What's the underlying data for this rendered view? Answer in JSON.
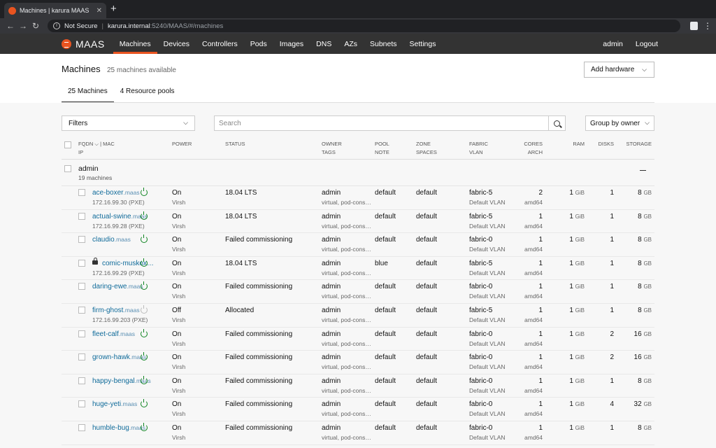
{
  "browser": {
    "tab_title": "Machines | karura MAAS",
    "security_label": "Not Secure",
    "url_host": "karura.internal",
    "url_path": ":5240/MAAS/#/machines"
  },
  "nav": {
    "logo": "MAAS",
    "items": [
      "Machines",
      "Devices",
      "Controllers",
      "Pods",
      "Images",
      "DNS",
      "AZs",
      "Subnets",
      "Settings"
    ],
    "active": "Machines",
    "user": "admin",
    "logout": "Logout"
  },
  "header": {
    "title": "Machines",
    "count": "25 machines available",
    "add_hardware": "Add hardware",
    "tabs": [
      "25 Machines",
      "4 Resource pools"
    ]
  },
  "controls": {
    "filters": "Filters",
    "search_placeholder": "Search",
    "group_by": "Group by owner"
  },
  "columns": {
    "fqdn": "FQDN",
    "mac": "| MAC",
    "ip": "IP",
    "power": "Power",
    "status": "Status",
    "owner": "Owner",
    "tags": "Tags",
    "pool": "Pool",
    "note": "Note",
    "zone": "Zone",
    "spaces": "Spaces",
    "fabric": "Fabric",
    "vlan": "VLAN",
    "cores": "Cores",
    "arch": "Arch",
    "ram": "RAM",
    "disks": "Disks",
    "storage": "Storage"
  },
  "group": {
    "name": "admin",
    "count": "19 machines"
  },
  "machines": [
    {
      "host": "ace-boxer",
      "domain": ".maas",
      "ip": "172.16.99.30 (PXE)",
      "power": "On",
      "power_type": "Virsh",
      "status": "18.04 LTS",
      "owner": "admin",
      "tags": "virtual, pod-cons…",
      "pool": "default",
      "zone": "default",
      "fabric": "fabric-5",
      "vlan": "Default VLAN",
      "cores": "2",
      "arch": "amd64",
      "ram": "1",
      "ram_unit": "GiB",
      "disks": "1",
      "storage": "8",
      "storage_unit": "GB",
      "locked": false
    },
    {
      "host": "actual-swine",
      "domain": ".maas",
      "ip": "172.16.99.28 (PXE)",
      "power": "On",
      "power_type": "Virsh",
      "status": "18.04 LTS",
      "owner": "admin",
      "tags": "virtual, pod-cons…",
      "pool": "default",
      "zone": "default",
      "fabric": "fabric-5",
      "vlan": "Default VLAN",
      "cores": "1",
      "arch": "amd64",
      "ram": "1",
      "ram_unit": "GiB",
      "disks": "1",
      "storage": "8",
      "storage_unit": "GB",
      "locked": false
    },
    {
      "host": "claudio",
      "domain": ".maas",
      "ip": "",
      "power": "On",
      "power_type": "Virsh",
      "status": "Failed commissioning",
      "owner": "admin",
      "tags": "virtual, pod-cons…",
      "pool": "default",
      "zone": "default",
      "fabric": "fabric-0",
      "vlan": "Default VLAN",
      "cores": "1",
      "arch": "amd64",
      "ram": "1",
      "ram_unit": "GiB",
      "disks": "1",
      "storage": "8",
      "storage_unit": "GB",
      "locked": false
    },
    {
      "host": "comic-muskox…",
      "domain": "",
      "ip": "172.16.99.29 (PXE)",
      "power": "On",
      "power_type": "Virsh",
      "status": "18.04 LTS",
      "owner": "admin",
      "tags": "virtual, pod-cons…",
      "pool": "blue",
      "zone": "default",
      "fabric": "fabric-5",
      "vlan": "Default VLAN",
      "cores": "1",
      "arch": "amd64",
      "ram": "1",
      "ram_unit": "GiB",
      "disks": "1",
      "storage": "8",
      "storage_unit": "GB",
      "locked": true
    },
    {
      "host": "daring-ewe",
      "domain": ".maas",
      "ip": "",
      "power": "On",
      "power_type": "Virsh",
      "status": "Failed commissioning",
      "owner": "admin",
      "tags": "virtual, pod-cons…",
      "pool": "default",
      "zone": "default",
      "fabric": "fabric-0",
      "vlan": "Default VLAN",
      "cores": "1",
      "arch": "amd64",
      "ram": "1",
      "ram_unit": "GiB",
      "disks": "1",
      "storage": "8",
      "storage_unit": "GB",
      "locked": false
    },
    {
      "host": "firm-ghost",
      "domain": ".maas",
      "ip": "172.16.99.203 (PXE)",
      "power": "Off",
      "power_type": "Virsh",
      "status": "Allocated",
      "owner": "admin",
      "tags": "virtual, pod-cons…",
      "pool": "default",
      "zone": "default",
      "fabric": "fabric-5",
      "vlan": "Default VLAN",
      "cores": "1",
      "arch": "amd64",
      "ram": "1",
      "ram_unit": "GiB",
      "disks": "1",
      "storage": "8",
      "storage_unit": "GB",
      "locked": false
    },
    {
      "host": "fleet-calf",
      "domain": ".maas",
      "ip": "",
      "power": "On",
      "power_type": "Virsh",
      "status": "Failed commissioning",
      "owner": "admin",
      "tags": "virtual, pod-cons…",
      "pool": "default",
      "zone": "default",
      "fabric": "fabric-0",
      "vlan": "Default VLAN",
      "cores": "1",
      "arch": "amd64",
      "ram": "1",
      "ram_unit": "GiB",
      "disks": "2",
      "storage": "16",
      "storage_unit": "GB",
      "locked": false
    },
    {
      "host": "grown-hawk",
      "domain": ".maas",
      "ip": "",
      "power": "On",
      "power_type": "Virsh",
      "status": "Failed commissioning",
      "owner": "admin",
      "tags": "virtual, pod-cons…",
      "pool": "default",
      "zone": "default",
      "fabric": "fabric-0",
      "vlan": "Default VLAN",
      "cores": "1",
      "arch": "amd64",
      "ram": "1",
      "ram_unit": "GiB",
      "disks": "2",
      "storage": "16",
      "storage_unit": "GB",
      "locked": false
    },
    {
      "host": "happy-bengal",
      "domain": ".maas",
      "ip": "",
      "power": "On",
      "power_type": "Virsh",
      "status": "Failed commissioning",
      "owner": "admin",
      "tags": "virtual, pod-cons…",
      "pool": "default",
      "zone": "default",
      "fabric": "fabric-0",
      "vlan": "Default VLAN",
      "cores": "1",
      "arch": "amd64",
      "ram": "1",
      "ram_unit": "GiB",
      "disks": "1",
      "storage": "8",
      "storage_unit": "GB",
      "locked": false
    },
    {
      "host": "huge-yeti",
      "domain": ".maas",
      "ip": "",
      "power": "On",
      "power_type": "Virsh",
      "status": "Failed commissioning",
      "owner": "admin",
      "tags": "virtual, pod-cons…",
      "pool": "default",
      "zone": "default",
      "fabric": "fabric-0",
      "vlan": "Default VLAN",
      "cores": "1",
      "arch": "amd64",
      "ram": "1",
      "ram_unit": "GiB",
      "disks": "4",
      "storage": "32",
      "storage_unit": "GB",
      "locked": false
    },
    {
      "host": "humble-bug",
      "domain": ".maas",
      "ip": "",
      "power": "On",
      "power_type": "Virsh",
      "status": "Failed commissioning",
      "owner": "admin",
      "tags": "virtual, pod-cons…",
      "pool": "default",
      "zone": "default",
      "fabric": "fabric-0",
      "vlan": "Default VLAN",
      "cores": "1",
      "arch": "amd64",
      "ram": "1",
      "ram_unit": "GiB",
      "disks": "1",
      "storage": "8",
      "storage_unit": "GB",
      "locked": false
    }
  ]
}
